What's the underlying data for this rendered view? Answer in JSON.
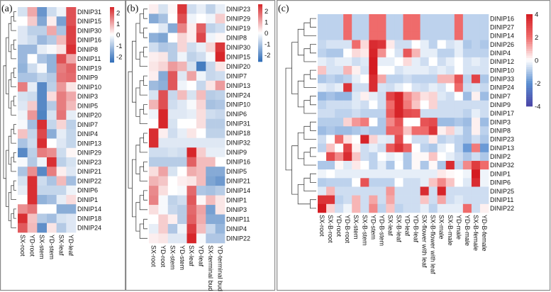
{
  "chart_data": [
    {
      "type": "heatmap",
      "panel_label": "(a)",
      "colorbar": {
        "min": -2.5,
        "max": 2.5,
        "ticks": [
          2,
          1,
          0,
          -1,
          -2
        ],
        "colors": [
          "#2e6cb8",
          "#ffffff",
          "#d7262a"
        ]
      },
      "columns": [
        "SX-root",
        "YD-root",
        "SX-stem",
        "YD-stem",
        "SX-leaf",
        "YD-leaf"
      ],
      "rows": [
        "DINIP31",
        "DINIP15",
        "DINIP30",
        "DINIP16",
        "DINIP8",
        "DINIP11",
        "DINIP19",
        "DINIP9",
        "DINIP10",
        "DINIP3",
        "DINIP5",
        "DINIP20",
        "DINIP7",
        "DINIP4",
        "DINIP13",
        "DINIP29",
        "DINIP23",
        "DINIP21",
        "DINIP22",
        "DINIP6",
        "DINIP1",
        "DINIP14",
        "DINIP18",
        "DINIP24"
      ],
      "values": [
        [
          -0.5,
          1,
          -1.8,
          -0.6,
          -0.2,
          2
        ],
        [
          0,
          0.6,
          -1.5,
          0.2,
          -1.6,
          2
        ],
        [
          -0.4,
          -0.8,
          -0.8,
          1,
          -1,
          2.2
        ],
        [
          -0.4,
          -0.6,
          -1.2,
          -0.9,
          0.8,
          2.2
        ],
        [
          -1.2,
          -1.2,
          -0.3,
          -0.1,
          0.3,
          2.4
        ],
        [
          -1.2,
          0,
          -1,
          -1.3,
          2,
          1
        ],
        [
          -1.3,
          -0.6,
          -0.1,
          -1.3,
          1.5,
          1.8
        ],
        [
          -1,
          -1,
          -0.7,
          -0.9,
          1.6,
          1.7
        ],
        [
          1.5,
          -0.3,
          -2,
          -0.8,
          1.2,
          0.3
        ],
        [
          -0.5,
          -0.6,
          -2,
          0.4,
          1.5,
          1
        ],
        [
          -0.4,
          0.6,
          -2,
          -0.9,
          1.5,
          0.8
        ],
        [
          -0.2,
          1.2,
          -2.1,
          -0.5,
          1.6,
          -0.3
        ],
        [
          -0.1,
          -1.1,
          2.4,
          -0.7,
          0.5,
          -0.8
        ],
        [
          0.7,
          -0.7,
          2.1,
          -1.4,
          -0.3,
          -0.7
        ],
        [
          -1,
          -0.6,
          2.4,
          0,
          -0.4,
          -0.7
        ],
        [
          -2,
          -0.8,
          1.5,
          1.3,
          -0.6,
          0.1
        ],
        [
          -0.1,
          -0.9,
          -0.2,
          2.4,
          -0.8,
          -0.5
        ],
        [
          -1,
          1.3,
          -2,
          1.5,
          0.2,
          -0.4
        ],
        [
          -0.5,
          2.4,
          -0.6,
          -1,
          0.8,
          -1.1
        ],
        [
          -0.3,
          2.4,
          -0.7,
          -0.7,
          -0.7,
          -0.2
        ],
        [
          0,
          2.4,
          -1.3,
          -1.1,
          -0.3,
          0.4
        ],
        [
          1.3,
          1.6,
          0,
          0,
          -1.4,
          -1.4
        ],
        [
          2.4,
          0.7,
          -0.9,
          -1.1,
          -0.5,
          -0.4
        ],
        [
          1.9,
          0.8,
          -1.9,
          0.3,
          -0.9,
          -0.4
        ]
      ]
    },
    {
      "type": "heatmap",
      "panel_label": "(b)",
      "colorbar": {
        "min": -2.6,
        "max": 2.6,
        "ticks": [
          2,
          1,
          0,
          -1,
          -2
        ],
        "colors": [
          "#2e6cb8",
          "#ffffff",
          "#d7262a"
        ]
      },
      "columns": [
        "SX-root",
        "YD-root",
        "SX-stem",
        "YD-stem",
        "SX-leaf",
        "YD-leaf",
        "SX-terminal bud",
        "YD-terminal bud"
      ],
      "rows": [
        "DINIP23",
        "DINIP29",
        "DINIP19",
        "DINIP8",
        "DINIP30",
        "DINIP15",
        "DINIP20",
        "DINIP7",
        "DINIP13",
        "DINIP24",
        "DINIP10",
        "DINIP6",
        "DINIP31",
        "DINIP18",
        "DINIP32",
        "DINIP9",
        "DINIP16",
        "DINIP5",
        "DINIP21",
        "DINIP14",
        "DINIP1",
        "DINIP3",
        "DINIP11",
        "DINIP4",
        "DINIP22"
      ],
      "values": [
        [
          0.2,
          -0.5,
          0.1,
          2.4,
          -0.6,
          -0.3,
          -0.8,
          -0.3
        ],
        [
          -1.5,
          -1.1,
          0,
          2.1,
          -0.2,
          0,
          -0.2,
          0.6
        ],
        [
          0,
          -0.4,
          -1.5,
          1.5,
          0.2,
          1.9,
          -0.8,
          -0.6
        ],
        [
          -1.4,
          -1.6,
          0,
          0.5,
          0.2,
          2.2,
          -0.2,
          0.1
        ],
        [
          -0.6,
          -1,
          -0.9,
          0.5,
          -0.6,
          -0.3,
          0.5,
          2.4
        ],
        [
          0.2,
          0.3,
          -0.9,
          -0.2,
          -0.8,
          -0.6,
          -0.1,
          2.6
        ],
        [
          0.3,
          0.5,
          1.2,
          0.9,
          -0.5,
          -2.3,
          -0.7,
          0.3
        ],
        [
          0.2,
          -1.5,
          2,
          -0.4,
          1.1,
          -0.2,
          -0.7,
          -0.6
        ],
        [
          -1.2,
          -1.4,
          2,
          -0.2,
          0,
          -0.7,
          0.3,
          1.2
        ],
        [
          -0.5,
          2.1,
          -0.7,
          0.8,
          -0.5,
          0.8,
          -0.9,
          -0.8
        ],
        [
          0.9,
          2.1,
          -0.6,
          -0.4,
          -0.1,
          0.5,
          -1.1,
          -1
        ],
        [
          -0.2,
          2.6,
          -0.4,
          -0.4,
          -0.3,
          0.4,
          -0.6,
          -0.7
        ],
        [
          0,
          2.6,
          -0.5,
          0,
          0,
          0.4,
          -0.9,
          -0.9
        ],
        [
          2.5,
          0.2,
          -0.6,
          -0.3,
          0.3,
          0,
          -0.8,
          -0.8
        ],
        [
          2.5,
          -0.4,
          -0.4,
          -0.4,
          -0.4,
          -0.4,
          -0.4,
          -0.4
        ],
        [
          -0.6,
          -0.6,
          -0.5,
          -0.6,
          2.6,
          0.6,
          -0.3,
          -0.3
        ],
        [
          -0.9,
          -0.9,
          -0.9,
          -0.9,
          1.9,
          0.8,
          0.8,
          0
        ],
        [
          0.4,
          1.1,
          -0.5,
          0,
          1,
          0.8,
          -1.5,
          -1.5
        ],
        [
          0.9,
          0.7,
          0,
          0.2,
          0.3,
          0.8,
          -1.6,
          -1.8
        ],
        [
          1.4,
          0.4,
          0,
          -0.1,
          1.8,
          -1,
          -1.1,
          -0.9
        ],
        [
          1.5,
          -0.1,
          -0.8,
          -0.6,
          2,
          0.1,
          0.8,
          0.3
        ],
        [
          0.4,
          -0.1,
          -0.7,
          -0.9,
          1.8,
          1.1,
          -1.7,
          0.3
        ],
        [
          0,
          0.6,
          0.2,
          -0.9,
          1.9,
          1,
          -1.5,
          -1.5
        ],
        [
          -0.3,
          0.6,
          -1,
          -0.2,
          2.3,
          0.8,
          -0.7,
          -1.3
        ],
        [
          0.2,
          0.3,
          -0.4,
          -0.4,
          2.6,
          -0.1,
          -1,
          -1
        ]
      ]
    },
    {
      "type": "heatmap",
      "panel_label": "(c)",
      "colorbar": {
        "min": -4,
        "max": 4,
        "ticks": [
          4,
          2,
          0,
          -2,
          -4
        ],
        "colors": [
          "#4a43a6",
          "#5b8fd1",
          "#ffffff",
          "#ef6b6b",
          "#d41c22"
        ]
      },
      "columns": [
        "SX-root",
        "SX-B-root",
        "YD-root",
        "YD-B-root",
        "SX-stem",
        "SX-B-stem",
        "YD-stem",
        "YD-B-stem",
        "SX-leaf",
        "SX-B-leaf",
        "YD-leaf",
        "YD-B-leaf",
        "SX-flower with leaf",
        "SX-B-flower with leaf",
        "SX-male",
        "SX-B-male",
        "YD-male",
        "YD-B-male",
        "SX-B-female",
        "YD-B-female"
      ],
      "rows": [
        "DINIP16",
        "DINIP27",
        "DINIP14",
        "DINIP26",
        "DINIP4",
        "DINIP12",
        "DINIP10",
        "DINIP33",
        "DINIP24",
        "DINIP7",
        "DINIP9",
        "DINIP17",
        "DINIP3",
        "DINIP8",
        "DINIP23",
        "DINIP13",
        "DINIP2",
        "DINIP32",
        "DINIP1",
        "DINIP6",
        "DINIP25",
        "DINIP11",
        "DINIP22"
      ],
      "values": [
        [
          -0.8,
          -0.8,
          -0.8,
          2,
          -0.8,
          -0.8,
          2,
          2,
          -0.8,
          -0.8,
          2,
          2,
          -0.8,
          -0.8,
          -0.8,
          -0.8,
          2,
          -0.8,
          -0.8,
          -0.8
        ],
        [
          -0.8,
          -0.8,
          -0.8,
          2,
          -0.8,
          -0.8,
          2,
          2,
          -0.8,
          -0.8,
          2,
          2,
          -0.8,
          -0.8,
          -0.8,
          -0.8,
          2,
          -0.8,
          -0.8,
          -0.8
        ],
        [
          -0.8,
          -0.8,
          -0.8,
          2,
          -0.8,
          -0.8,
          2,
          2,
          -0.8,
          -0.8,
          2,
          2,
          -0.8,
          -0.8,
          -0.8,
          -0.8,
          2,
          -0.8,
          -0.8,
          -0.8
        ],
        [
          -0.7,
          -0.5,
          -0.5,
          -0.5,
          2,
          0.5,
          3.6,
          3.4,
          0.3,
          -0.6,
          -0.6,
          0,
          -0.3,
          -0.8,
          0,
          -0.5,
          -0.3,
          -1,
          -0.8,
          -1
        ],
        [
          -0.8,
          -1,
          -1,
          0,
          0.5,
          0.3,
          3.8,
          1.5,
          0,
          -0.5,
          2.5,
          1,
          -0.3,
          -0.3,
          -0.8,
          -0.8,
          -0.3,
          -0.8,
          -0.8,
          -0.8
        ],
        [
          -0.3,
          -0.5,
          -0.3,
          -0.3,
          -0.6,
          -0.4,
          4,
          -0.3,
          -0.3,
          0,
          0.5,
          -0.3,
          -0.6,
          0,
          -0.6,
          -0.3,
          0,
          -0.5,
          -0.3,
          -0.5
        ],
        [
          0.8,
          -0.5,
          -0.5,
          1,
          0.2,
          -0.5,
          4,
          0,
          0,
          -0.5,
          -0.3,
          -0.3,
          -0.3,
          -0.5,
          -0.3,
          -0.5,
          0,
          -0.5,
          -0.5,
          -0.5
        ],
        [
          -1,
          -0.8,
          -1,
          -0.8,
          -0.3,
          0,
          3.6,
          1.2,
          -0.8,
          -0.8,
          -0.6,
          -0.8,
          -0.8,
          -0.8,
          1,
          1,
          2.6,
          -0.8,
          3,
          -1
        ],
        [
          -0.3,
          -0.5,
          -0.3,
          3.4,
          -0.6,
          -0.6,
          3.6,
          -0.5,
          -0.6,
          -0.3,
          0,
          -0.5,
          -0.6,
          -0.3,
          -0.5,
          0,
          2,
          -0.6,
          -0.5,
          -0.7
        ],
        [
          -1.3,
          -1.1,
          -1.3,
          -1.3,
          -0.4,
          0.2,
          -0.3,
          -0.6,
          3,
          3.8,
          1.6,
          1,
          0.4,
          0.6,
          -0.4,
          -0.6,
          0,
          -1.2,
          0.2,
          -1.2
        ],
        [
          -0.8,
          -0.6,
          -0.6,
          -0.6,
          -0.4,
          -0.6,
          0,
          -0.6,
          2,
          3.8,
          1.8,
          0.8,
          0,
          0.6,
          -0.6,
          -0.6,
          -0.6,
          -0.6,
          -0.6,
          -0.6
        ],
        [
          -0.6,
          -0.6,
          -0.8,
          -0.8,
          -0.6,
          -0.8,
          -0.8,
          -0.8,
          2.4,
          3.8,
          2.8,
          2.6,
          -0.6,
          -0.6,
          -0.6,
          -0.6,
          -0.6,
          -0.8,
          -0.3,
          -0.6
        ],
        [
          -0.9,
          -0.9,
          -0.9,
          0.6,
          1.4,
          1.8,
          0,
          -1,
          1.6,
          2.6,
          0,
          0,
          2.6,
          2.8,
          -1.2,
          -1.2,
          -1,
          -1.2,
          0.2,
          -1.2
        ],
        [
          -1.2,
          -1,
          -1.2,
          -1.2,
          -1,
          -0.8,
          -1,
          -1,
          2.2,
          2.2,
          0.8,
          2,
          2,
          3.4,
          0.2,
          0.6,
          -0.4,
          -1,
          0.2,
          -0.8
        ],
        [
          -0.6,
          0,
          2,
          0.4,
          0,
          3.8,
          0.6,
          -0.3,
          -0.4,
          2.8,
          0,
          -0.6,
          -0.6,
          0.3,
          -0.8,
          -0.6,
          -0.8,
          -1,
          -0.6,
          -1
        ],
        [
          -0.8,
          0.8,
          0,
          3,
          0.2,
          -0.6,
          -0.3,
          -0.6,
          2.4,
          3.4,
          2.2,
          0,
          -0.8,
          -1,
          -0.3,
          0,
          -0.8,
          -1.8,
          1.8,
          -1.8
        ],
        [
          0,
          2.8,
          1.6,
          3.6,
          0.8,
          -0.6,
          -0.8,
          0,
          -0.3,
          -0.1,
          -1,
          0.1,
          0.1,
          0.8,
          0,
          -0.3,
          -0.6,
          -1,
          -0.6,
          -1
        ],
        [
          -1,
          -1,
          0.1,
          -0.4,
          0.3,
          0,
          -0.8,
          -0.3,
          -1,
          0,
          -1,
          0.1,
          -1,
          0.1,
          -1,
          3.6,
          -0.8,
          1.6,
          3.2,
          2
        ],
        [
          -0.2,
          0,
          -0.3,
          -0.3,
          -0.3,
          -0.3,
          -0.3,
          -0.3,
          -0.3,
          -0.3,
          -0.3,
          -0.3,
          -0.3,
          -0.3,
          0.3,
          0.1,
          0,
          -0.2,
          4,
          -0.2
        ],
        [
          -0.9,
          -0.8,
          -0.8,
          -0.8,
          0,
          2.6,
          -0.8,
          -0.8,
          -0.8,
          0,
          -0.6,
          -0.6,
          -0.3,
          0.8,
          1.6,
          0.8,
          0,
          -0.4,
          3.6,
          -0.2
        ],
        [
          -0.4,
          1,
          -0.6,
          -0.6,
          -0.6,
          -0.6,
          -0.6,
          -0.6,
          1.4,
          -0.6,
          -0.6,
          -0.6,
          3.6,
          -0.6,
          3.8,
          -0.6,
          -0.6,
          -0.6,
          -0.6,
          -0.6
        ],
        [
          3.4,
          3.4,
          -0.8,
          -0.6,
          1,
          -0.6,
          1.2,
          -0.6,
          1.2,
          -0.6,
          -0.6,
          -0.6,
          0.8,
          -0.6,
          1.2,
          -0.6,
          -0.4,
          -0.6,
          -0.6,
          -0.6
        ],
        [
          4,
          0.6,
          -0.6,
          -0.2,
          1,
          -0.6,
          1.6,
          -0.8,
          0.8,
          -0.8,
          -0.6,
          -0.6,
          -0.3,
          -0.8,
          -0.3,
          -0.3,
          -0.3,
          2,
          -0.6,
          0.2
        ]
      ]
    }
  ]
}
